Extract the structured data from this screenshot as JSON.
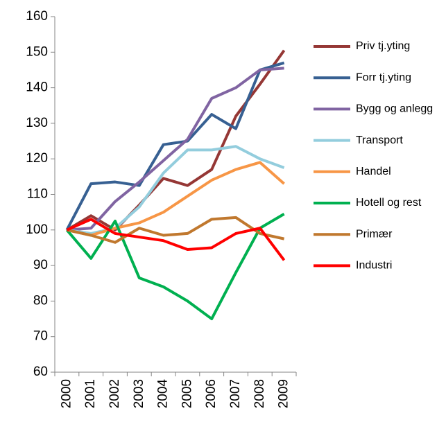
{
  "chart_data": {
    "type": "line",
    "categories": [
      "2000",
      "2001",
      "2002",
      "2003",
      "2004",
      "2005",
      "2006",
      "2007",
      "2008",
      "2009"
    ],
    "series": [
      {
        "name": "Priv tj.yting",
        "color": "#953735",
        "values": [
          100,
          104,
          100,
          107,
          114.5,
          112.5,
          117,
          132,
          141,
          150.5
        ]
      },
      {
        "name": "Forr tj.yting",
        "color": "#376092",
        "values": [
          100,
          113,
          113.5,
          112.5,
          124,
          125,
          132.5,
          128.5,
          145,
          147
        ]
      },
      {
        "name": "Bygg og anlegg",
        "color": "#8064a2",
        "values": [
          100,
          100.5,
          108,
          113.5,
          119.5,
          125.5,
          137,
          140,
          145,
          145.5
        ]
      },
      {
        "name": "Transport",
        "color": "#93cddd",
        "values": [
          100,
          99,
          100.5,
          106.5,
          116,
          122.5,
          122.5,
          123.5,
          120,
          117.5
        ]
      },
      {
        "name": "Handel",
        "color": "#f79646",
        "values": [
          100,
          98.5,
          100.5,
          102,
          105,
          109.5,
          114,
          117,
          119,
          113
        ]
      },
      {
        "name": "Hotell og rest",
        "color": "#00b050",
        "values": [
          100,
          92,
          102.5,
          86.5,
          84,
          80,
          75,
          88,
          100.5,
          104.5
        ]
      },
      {
        "name": "Primær",
        "color": "#c0782e",
        "values": [
          100,
          98.5,
          96.5,
          100.5,
          98.5,
          99,
          103,
          103.5,
          99,
          97.5
        ]
      },
      {
        "name": "Industri",
        "color": "#ff0000",
        "values": [
          100,
          103,
          99,
          98,
          97,
          94.5,
          95,
          99,
          100.5,
          91.5
        ]
      }
    ],
    "ylim": [
      60,
      160
    ],
    "yticks": [
      60,
      70,
      80,
      90,
      100,
      110,
      120,
      130,
      140,
      150,
      160
    ],
    "legend": "right"
  }
}
